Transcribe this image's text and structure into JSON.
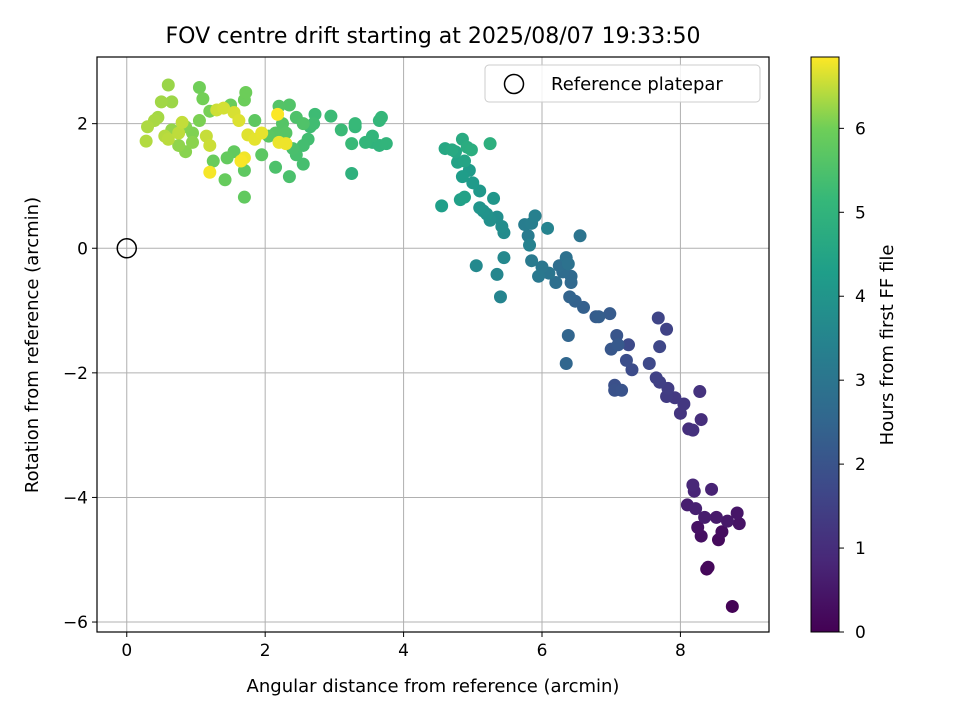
{
  "chart_data": {
    "type": "scatter",
    "title": "FOV centre drift starting at 2025/08/07 19:33:50",
    "xlabel": "Angular distance from reference (arcmin)",
    "ylabel": "Rotation from reference (arcmin)",
    "xlim": [
      -0.43,
      9.28
    ],
    "ylim": [
      -6.16,
      3.07
    ],
    "xticks": [
      0,
      2,
      4,
      6,
      8
    ],
    "yticks": [
      -6,
      -4,
      -2,
      0,
      2
    ],
    "grid": true,
    "legend": {
      "placement": "upper right",
      "entries": [
        "Reference platepar"
      ]
    },
    "reference_point": {
      "x": 0,
      "y": 0,
      "label": "Reference platepar"
    },
    "colorbar": {
      "label": "Hours from first FF file",
      "colormap": "viridis",
      "range": [
        0,
        6.85
      ],
      "ticks": [
        0,
        1,
        2,
        3,
        4,
        5,
        6
      ]
    },
    "points": [
      {
        "x": 8.75,
        "y": -5.75,
        "c": 0.05
      },
      {
        "x": 8.38,
        "y": -5.15,
        "c": 0.1
      },
      {
        "x": 8.4,
        "y": -5.12,
        "c": 0.15
      },
      {
        "x": 8.55,
        "y": -4.68,
        "c": 0.2
      },
      {
        "x": 8.6,
        "y": -4.55,
        "c": 0.25
      },
      {
        "x": 8.3,
        "y": -4.62,
        "c": 0.3
      },
      {
        "x": 8.25,
        "y": -4.48,
        "c": 0.35
      },
      {
        "x": 8.85,
        "y": -4.42,
        "c": 0.4
      },
      {
        "x": 8.82,
        "y": -4.25,
        "c": 0.45
      },
      {
        "x": 8.68,
        "y": -4.38,
        "c": 0.5
      },
      {
        "x": 8.52,
        "y": -4.32,
        "c": 0.55
      },
      {
        "x": 8.35,
        "y": -4.32,
        "c": 0.6
      },
      {
        "x": 8.1,
        "y": -4.12,
        "c": 0.65
      },
      {
        "x": 8.22,
        "y": -4.18,
        "c": 0.7
      },
      {
        "x": 8.45,
        "y": -3.87,
        "c": 0.75
      },
      {
        "x": 8.2,
        "y": -3.9,
        "c": 0.8
      },
      {
        "x": 8.18,
        "y": -3.8,
        "c": 0.85
      },
      {
        "x": 8.3,
        "y": -2.75,
        "c": 1.0
      },
      {
        "x": 8.12,
        "y": -2.9,
        "c": 1.05
      },
      {
        "x": 8.18,
        "y": -2.92,
        "c": 1.1
      },
      {
        "x": 8.28,
        "y": -2.3,
        "c": 1.15
      },
      {
        "x": 8.0,
        "y": -2.65,
        "c": 1.2
      },
      {
        "x": 8.05,
        "y": -2.5,
        "c": 1.25
      },
      {
        "x": 7.92,
        "y": -2.4,
        "c": 1.3
      },
      {
        "x": 7.8,
        "y": -2.38,
        "c": 1.35
      },
      {
        "x": 7.82,
        "y": -2.25,
        "c": 1.4
      },
      {
        "x": 7.7,
        "y": -2.15,
        "c": 1.45
      },
      {
        "x": 7.65,
        "y": -2.08,
        "c": 1.5
      },
      {
        "x": 7.8,
        "y": -1.3,
        "c": 1.55
      },
      {
        "x": 7.68,
        "y": -1.12,
        "c": 1.6
      },
      {
        "x": 7.7,
        "y": -1.58,
        "c": 1.65
      },
      {
        "x": 7.55,
        "y": -1.85,
        "c": 1.7
      },
      {
        "x": 7.25,
        "y": -1.55,
        "c": 1.75
      },
      {
        "x": 7.3,
        "y": -1.95,
        "c": 1.8
      },
      {
        "x": 7.22,
        "y": -1.8,
        "c": 1.85
      },
      {
        "x": 7.05,
        "y": -2.2,
        "c": 1.9
      },
      {
        "x": 7.05,
        "y": -2.28,
        "c": 1.95
      },
      {
        "x": 7.15,
        "y": -2.28,
        "c": 2.0
      },
      {
        "x": 7.08,
        "y": -1.4,
        "c": 2.05
      },
      {
        "x": 7.0,
        "y": -1.62,
        "c": 2.1
      },
      {
        "x": 7.1,
        "y": -1.55,
        "c": 2.15
      },
      {
        "x": 6.98,
        "y": -1.05,
        "c": 2.2
      },
      {
        "x": 6.78,
        "y": -1.1,
        "c": 2.25
      },
      {
        "x": 6.82,
        "y": -1.1,
        "c": 2.3
      },
      {
        "x": 6.6,
        "y": -0.95,
        "c": 2.35
      },
      {
        "x": 6.48,
        "y": -0.85,
        "c": 2.4
      },
      {
        "x": 6.4,
        "y": -0.78,
        "c": 2.45
      },
      {
        "x": 6.38,
        "y": -1.4,
        "c": 2.5
      },
      {
        "x": 6.35,
        "y": -1.85,
        "c": 2.55
      },
      {
        "x": 6.42,
        "y": -0.55,
        "c": 2.6
      },
      {
        "x": 6.42,
        "y": -0.45,
        "c": 2.65
      },
      {
        "x": 6.3,
        "y": -0.38,
        "c": 2.7
      },
      {
        "x": 6.25,
        "y": -0.28,
        "c": 2.75
      },
      {
        "x": 6.2,
        "y": -0.55,
        "c": 2.8
      },
      {
        "x": 6.35,
        "y": -0.15,
        "c": 2.85
      },
      {
        "x": 6.38,
        "y": -0.25,
        "c": 2.9
      },
      {
        "x": 6.55,
        "y": 0.2,
        "c": 2.95
      },
      {
        "x": 6.1,
        "y": -0.4,
        "c": 3.0
      },
      {
        "x": 6.0,
        "y": -0.3,
        "c": 3.05
      },
      {
        "x": 5.95,
        "y": -0.45,
        "c": 3.1
      },
      {
        "x": 5.85,
        "y": -0.2,
        "c": 3.15
      },
      {
        "x": 5.8,
        "y": 0.2,
        "c": 3.2
      },
      {
        "x": 5.75,
        "y": 0.38,
        "c": 3.25
      },
      {
        "x": 5.85,
        "y": 0.4,
        "c": 3.3
      },
      {
        "x": 5.9,
        "y": 0.52,
        "c": 3.35
      },
      {
        "x": 5.82,
        "y": 0.05,
        "c": 3.4
      },
      {
        "x": 6.08,
        "y": 0.32,
        "c": 3.45
      },
      {
        "x": 5.4,
        "y": -0.78,
        "c": 3.5
      },
      {
        "x": 5.35,
        "y": -0.42,
        "c": 3.55
      },
      {
        "x": 5.45,
        "y": -0.15,
        "c": 3.6
      },
      {
        "x": 5.05,
        "y": -0.28,
        "c": 3.65
      },
      {
        "x": 5.45,
        "y": 0.25,
        "c": 3.7
      },
      {
        "x": 5.42,
        "y": 0.35,
        "c": 3.75
      },
      {
        "x": 5.35,
        "y": 0.5,
        "c": 3.8
      },
      {
        "x": 5.25,
        "y": 0.45,
        "c": 3.85
      },
      {
        "x": 5.2,
        "y": 0.55,
        "c": 3.9
      },
      {
        "x": 5.15,
        "y": 0.6,
        "c": 3.95
      },
      {
        "x": 5.1,
        "y": 0.65,
        "c": 4.0
      },
      {
        "x": 5.3,
        "y": 0.8,
        "c": 4.05
      },
      {
        "x": 5.1,
        "y": 0.92,
        "c": 4.1
      },
      {
        "x": 5.0,
        "y": 1.05,
        "c": 4.15
      },
      {
        "x": 4.95,
        "y": 1.25,
        "c": 4.2
      },
      {
        "x": 4.85,
        "y": 1.15,
        "c": 4.25
      },
      {
        "x": 4.55,
        "y": 0.68,
        "c": 4.3
      },
      {
        "x": 4.82,
        "y": 0.78,
        "c": 4.35
      },
      {
        "x": 4.88,
        "y": 0.82,
        "c": 4.4
      },
      {
        "x": 4.78,
        "y": 1.38,
        "c": 4.45
      },
      {
        "x": 4.88,
        "y": 1.4,
        "c": 4.5
      },
      {
        "x": 4.75,
        "y": 1.55,
        "c": 4.55
      },
      {
        "x": 4.6,
        "y": 1.6,
        "c": 4.6
      },
      {
        "x": 4.7,
        "y": 1.58,
        "c": 4.65
      },
      {
        "x": 4.85,
        "y": 1.75,
        "c": 4.7
      },
      {
        "x": 4.92,
        "y": 1.62,
        "c": 4.75
      },
      {
        "x": 4.98,
        "y": 1.58,
        "c": 4.8
      },
      {
        "x": 5.25,
        "y": 1.68,
        "c": 4.85
      },
      {
        "x": 3.25,
        "y": 1.2,
        "c": 4.9
      },
      {
        "x": 3.55,
        "y": 1.7,
        "c": 4.95
      },
      {
        "x": 3.65,
        "y": 1.65,
        "c": 5.0
      },
      {
        "x": 3.75,
        "y": 1.68,
        "c": 5.02
      },
      {
        "x": 3.55,
        "y": 1.8,
        "c": 5.05
      },
      {
        "x": 3.45,
        "y": 1.7,
        "c": 5.07
      },
      {
        "x": 3.65,
        "y": 2.05,
        "c": 5.1
      },
      {
        "x": 3.68,
        "y": 2.1,
        "c": 5.12
      },
      {
        "x": 3.3,
        "y": 1.95,
        "c": 5.15
      },
      {
        "x": 3.3,
        "y": 2.0,
        "c": 5.17
      },
      {
        "x": 3.25,
        "y": 1.68,
        "c": 5.2
      },
      {
        "x": 3.1,
        "y": 1.9,
        "c": 5.22
      },
      {
        "x": 2.95,
        "y": 2.12,
        "c": 5.25
      },
      {
        "x": 2.72,
        "y": 2.15,
        "c": 5.27
      },
      {
        "x": 2.65,
        "y": 1.95,
        "c": 5.3
      },
      {
        "x": 2.7,
        "y": 2.0,
        "c": 5.32
      },
      {
        "x": 2.62,
        "y": 1.75,
        "c": 5.35
      },
      {
        "x": 2.55,
        "y": 1.65,
        "c": 5.37
      },
      {
        "x": 2.55,
        "y": 1.35,
        "c": 5.4
      },
      {
        "x": 2.45,
        "y": 1.5,
        "c": 5.42
      },
      {
        "x": 2.4,
        "y": 1.6,
        "c": 5.45
      },
      {
        "x": 2.35,
        "y": 1.15,
        "c": 5.47
      },
      {
        "x": 2.15,
        "y": 1.3,
        "c": 5.5
      },
      {
        "x": 2.45,
        "y": 2.1,
        "c": 5.52
      },
      {
        "x": 2.55,
        "y": 2.0,
        "c": 5.55
      },
      {
        "x": 2.35,
        "y": 2.3,
        "c": 5.57
      },
      {
        "x": 2.2,
        "y": 2.28,
        "c": 5.6
      },
      {
        "x": 2.25,
        "y": 2.0,
        "c": 5.62
      },
      {
        "x": 2.3,
        "y": 1.85,
        "c": 5.65
      },
      {
        "x": 2.15,
        "y": 1.85,
        "c": 5.67
      },
      {
        "x": 2.05,
        "y": 1.8,
        "c": 5.7
      },
      {
        "x": 1.95,
        "y": 1.5,
        "c": 5.72
      },
      {
        "x": 1.85,
        "y": 2.05,
        "c": 5.75
      },
      {
        "x": 1.7,
        "y": 1.25,
        "c": 5.77
      },
      {
        "x": 1.7,
        "y": 0.82,
        "c": 5.8
      },
      {
        "x": 1.55,
        "y": 1.55,
        "c": 5.82
      },
      {
        "x": 1.45,
        "y": 1.45,
        "c": 5.85
      },
      {
        "x": 1.42,
        "y": 1.1,
        "c": 5.87
      },
      {
        "x": 1.25,
        "y": 1.4,
        "c": 5.9
      },
      {
        "x": 1.5,
        "y": 2.3,
        "c": 5.92
      },
      {
        "x": 1.7,
        "y": 2.38,
        "c": 5.95
      },
      {
        "x": 1.72,
        "y": 2.5,
        "c": 5.97
      },
      {
        "x": 1.05,
        "y": 2.58,
        "c": 6.0
      },
      {
        "x": 1.1,
        "y": 2.4,
        "c": 6.02
      },
      {
        "x": 1.2,
        "y": 2.2,
        "c": 6.05
      },
      {
        "x": 1.05,
        "y": 2.05,
        "c": 6.07
      },
      {
        "x": 0.95,
        "y": 1.85,
        "c": 6.1
      },
      {
        "x": 0.85,
        "y": 1.95,
        "c": 6.12
      },
      {
        "x": 0.85,
        "y": 1.55,
        "c": 6.15
      },
      {
        "x": 0.95,
        "y": 1.7,
        "c": 6.17
      },
      {
        "x": 0.75,
        "y": 1.65,
        "c": 6.2
      },
      {
        "x": 0.65,
        "y": 1.9,
        "c": 6.22
      },
      {
        "x": 0.6,
        "y": 2.62,
        "c": 6.25
      },
      {
        "x": 0.65,
        "y": 2.35,
        "c": 6.27
      },
      {
        "x": 0.5,
        "y": 2.35,
        "c": 6.3
      },
      {
        "x": 0.45,
        "y": 2.1,
        "c": 6.32
      },
      {
        "x": 0.4,
        "y": 2.05,
        "c": 6.35
      },
      {
        "x": 0.3,
        "y": 1.95,
        "c": 6.37
      },
      {
        "x": 0.28,
        "y": 1.72,
        "c": 6.4
      },
      {
        "x": 0.55,
        "y": 1.8,
        "c": 6.42
      },
      {
        "x": 0.6,
        "y": 1.75,
        "c": 6.45
      },
      {
        "x": 0.75,
        "y": 1.85,
        "c": 6.47
      },
      {
        "x": 0.8,
        "y": 2.02,
        "c": 6.5
      },
      {
        "x": 1.15,
        "y": 1.8,
        "c": 6.52
      },
      {
        "x": 1.2,
        "y": 1.65,
        "c": 6.55
      },
      {
        "x": 1.3,
        "y": 2.22,
        "c": 6.57
      },
      {
        "x": 1.4,
        "y": 2.25,
        "c": 6.6
      },
      {
        "x": 1.55,
        "y": 2.18,
        "c": 6.62
      },
      {
        "x": 1.62,
        "y": 2.05,
        "c": 6.65
      },
      {
        "x": 1.75,
        "y": 1.82,
        "c": 6.67
      },
      {
        "x": 1.85,
        "y": 1.75,
        "c": 6.7
      },
      {
        "x": 1.95,
        "y": 1.85,
        "c": 6.72
      },
      {
        "x": 2.2,
        "y": 1.7,
        "c": 6.74
      },
      {
        "x": 2.3,
        "y": 1.68,
        "c": 6.76
      },
      {
        "x": 1.7,
        "y": 1.45,
        "c": 6.78
      },
      {
        "x": 1.2,
        "y": 1.22,
        "c": 6.8
      },
      {
        "x": 1.65,
        "y": 1.4,
        "c": 6.82
      },
      {
        "x": 2.18,
        "y": 2.15,
        "c": 6.84
      }
    ]
  }
}
